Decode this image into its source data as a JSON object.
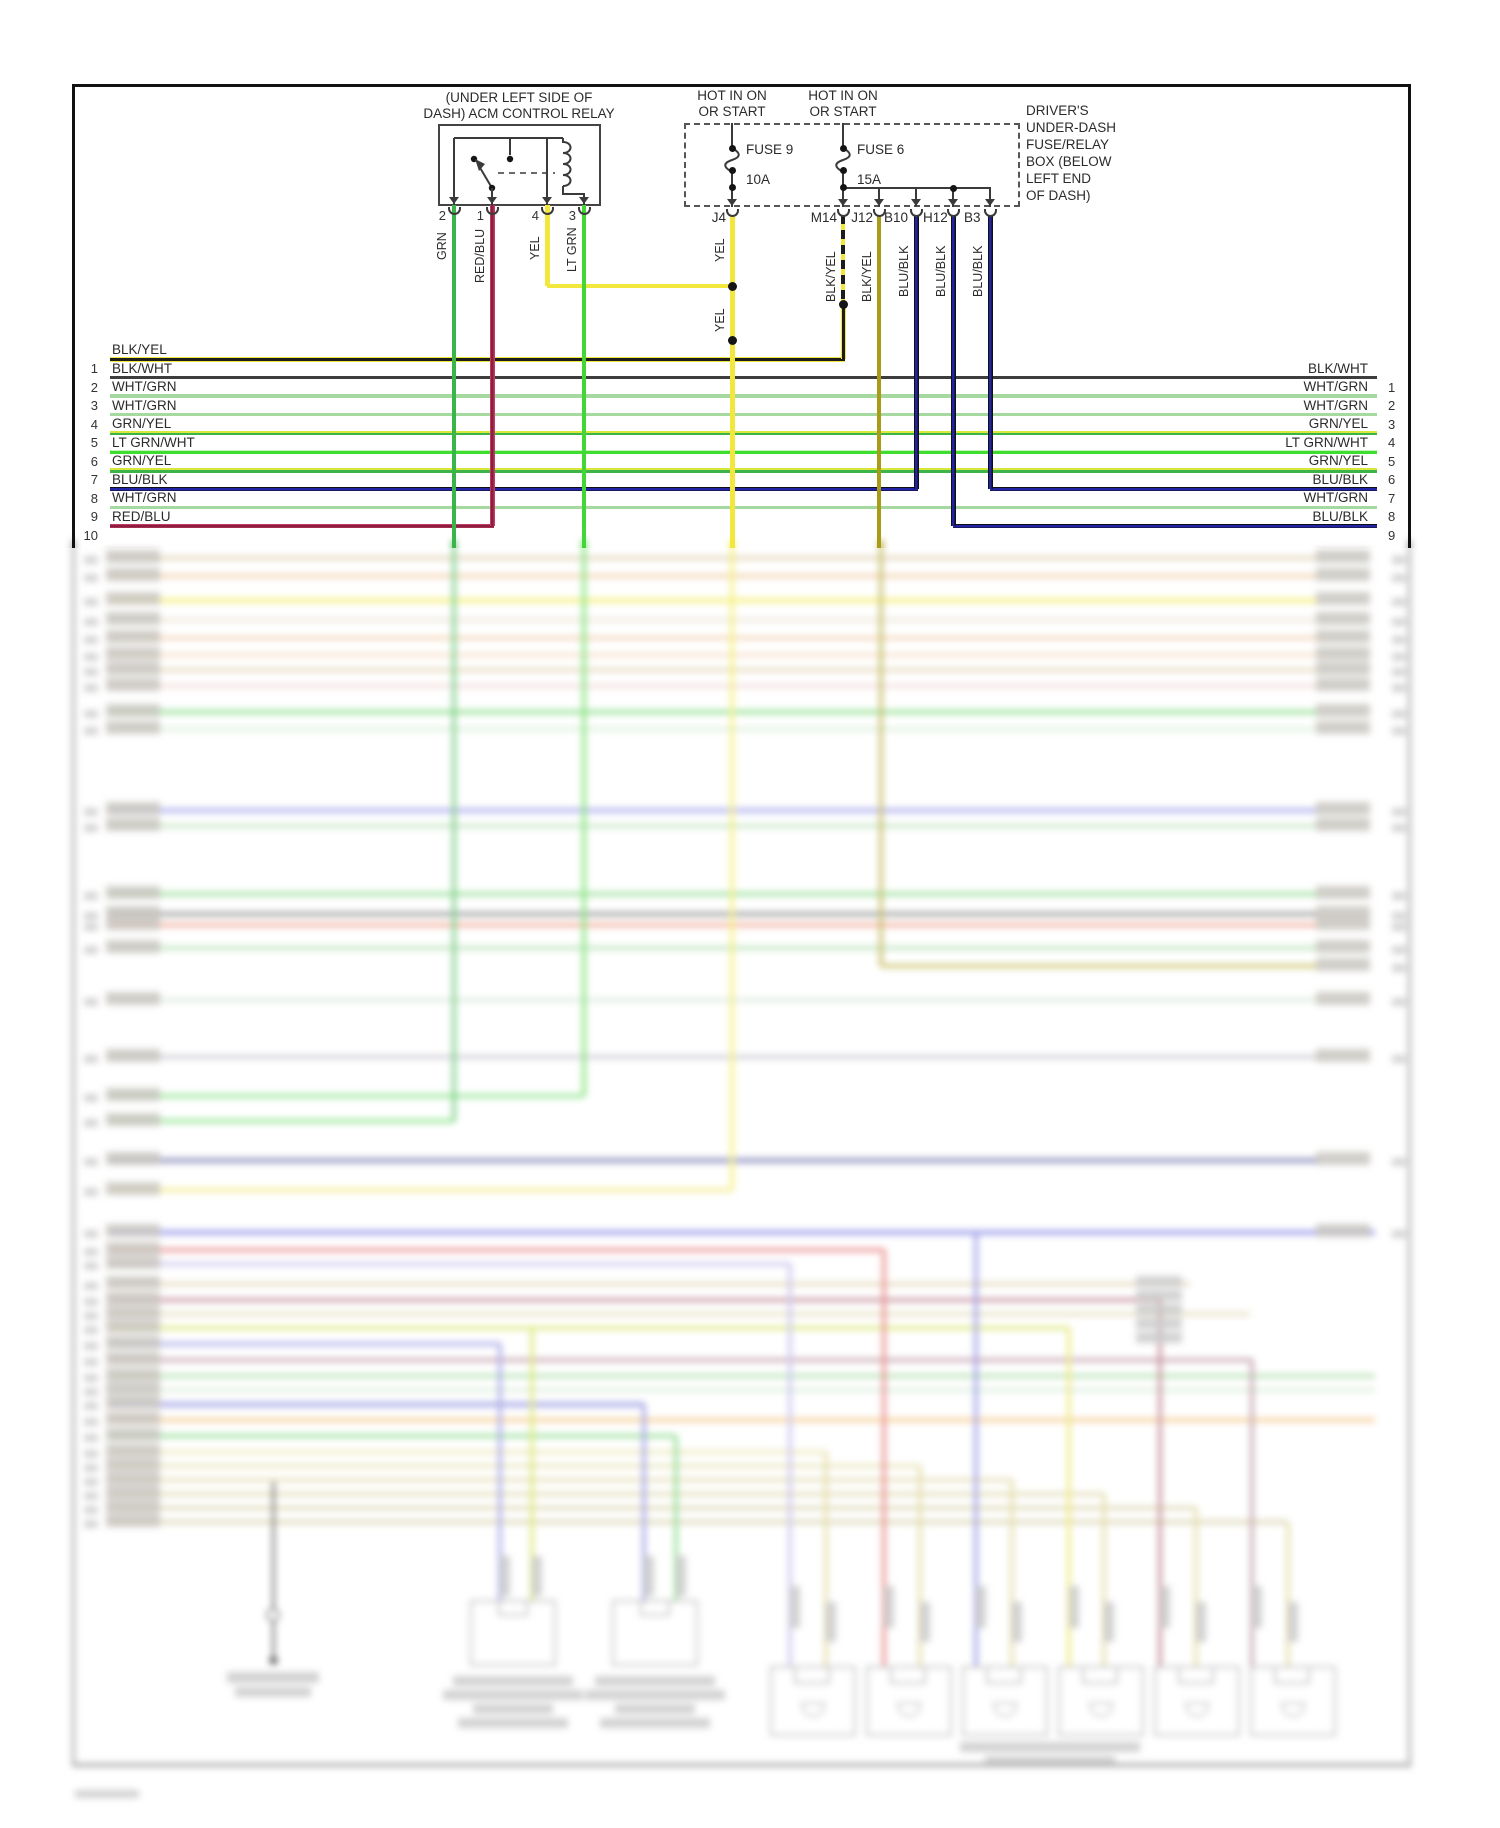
{
  "relay": {
    "location_label": [
      "(UNDER LEFT SIDE OF",
      "DASH) ACM CONTROL RELAY"
    ],
    "pins": [
      "2",
      "1",
      "4",
      "3"
    ],
    "pin_wires": [
      "GRN",
      "RED/BLU",
      "YEL",
      "LT GRN"
    ]
  },
  "fusebox": {
    "feed1": [
      "HOT IN ON",
      "OR START"
    ],
    "feed2": [
      "HOT IN ON",
      "OR START"
    ],
    "fuse1_name": "FUSE 9",
    "fuse1_rating": "10A",
    "fuse2_name": "FUSE 6",
    "fuse2_rating": "15A",
    "box_label": [
      "DRIVER'S",
      "UNDER-DASH",
      "FUSE/RELAY",
      "BOX (BELOW",
      "LEFT END",
      "OF DASH)"
    ]
  },
  "connectors": [
    {
      "name": "J4",
      "wire": "YEL"
    },
    {
      "name": "M14",
      "wire": "BLK/YEL"
    },
    {
      "name": "J12",
      "wire": "BLK/YEL"
    },
    {
      "name": "B10",
      "wire": "BLU/BLK"
    },
    {
      "name": "H12",
      "wire": "BLU/BLK"
    },
    {
      "name": "B3",
      "wire": "BLU/BLK"
    }
  ],
  "mid_wire_label": "YEL",
  "rows_left": [
    {
      "n": "1",
      "label": "BLK/YEL"
    },
    {
      "n": "2",
      "label": "BLK/WHT"
    },
    {
      "n": "3",
      "label": "WHT/GRN"
    },
    {
      "n": "4",
      "label": "WHT/GRN"
    },
    {
      "n": "5",
      "label": "GRN/YEL"
    },
    {
      "n": "6",
      "label": "LT GRN/WHT"
    },
    {
      "n": "7",
      "label": "GRN/YEL"
    },
    {
      "n": "8",
      "label": "BLU/BLK"
    },
    {
      "n": "9",
      "label": "WHT/GRN"
    },
    {
      "n": "10",
      "label": "RED/BLU"
    }
  ],
  "rows_right": [
    {
      "n": "1",
      "label": "BLK/WHT"
    },
    {
      "n": "2",
      "label": "WHT/GRN"
    },
    {
      "n": "3",
      "label": "WHT/GRN"
    },
    {
      "n": "4",
      "label": "GRN/YEL"
    },
    {
      "n": "5",
      "label": "LT GRN/WHT"
    },
    {
      "n": "6",
      "label": "GRN/YEL"
    },
    {
      "n": "7",
      "label": "BLU/BLK"
    },
    {
      "n": "8",
      "label": "WHT/GRN"
    },
    {
      "n": "9",
      "label": "BLU/BLK"
    }
  ],
  "colors": {
    "grn": "#3bb54a",
    "lt_grn": "#44d636",
    "yel": "#f2e73c",
    "red_blu": "#8c1f3e",
    "blu_blk": "#2323a8",
    "blk_wht": "#3d3d3d",
    "wht_grn": "#a6d9a0",
    "blk_yel": "#1c1c1c"
  }
}
